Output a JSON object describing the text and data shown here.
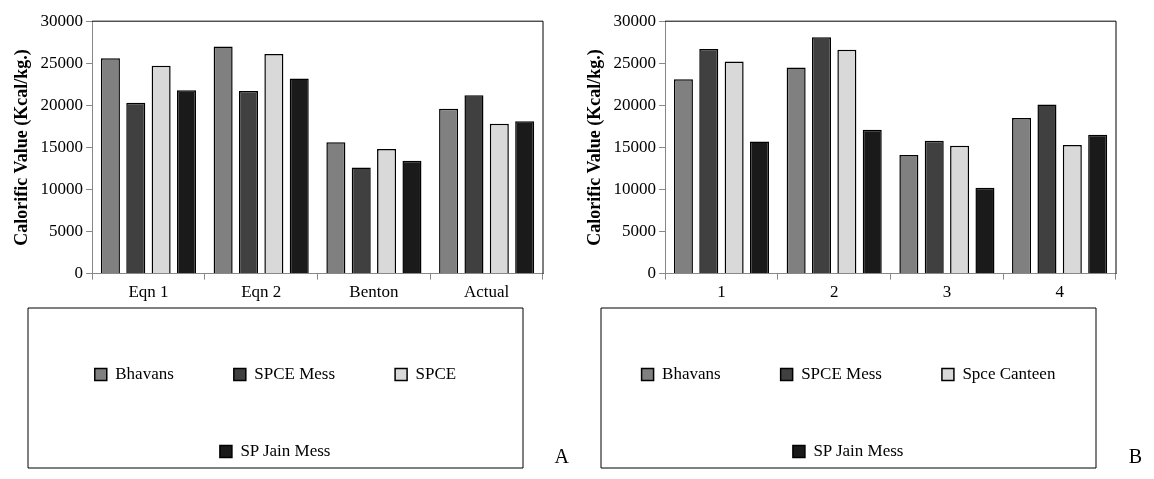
{
  "chart_data": [
    {
      "type": "bar",
      "ylabel": "Calorific Value (Kcal/kg.)",
      "categories": [
        "Eqn 1",
        "Eqn 2",
        "Benton",
        "Actual"
      ],
      "ylim": [
        0,
        30000
      ],
      "yticks": [
        0,
        5000,
        10000,
        15000,
        20000,
        25000,
        30000
      ],
      "grid": false,
      "legend": "bottom",
      "annotations": [
        "A"
      ],
      "series": [
        {
          "name": "Bhavans",
          "color": "#808080",
          "values": [
            25600,
            27000,
            15600,
            19600
          ]
        },
        {
          "name": "SPCE Mess",
          "color": "#404040",
          "values": [
            20300,
            21700,
            12600,
            21200
          ]
        },
        {
          "name": "SPCE",
          "color": "#d9d9d9",
          "values": [
            24700,
            26100,
            14800,
            17800
          ]
        },
        {
          "name": "SP Jain Mess",
          "color": "#1a1a1a",
          "values": [
            21800,
            23200,
            13400,
            18100
          ]
        }
      ]
    },
    {
      "type": "bar",
      "ylabel": "Calorific Value (Kcal/kg.)",
      "categories": [
        "1",
        "2",
        "3",
        "4"
      ],
      "ylim": [
        0,
        30000
      ],
      "yticks": [
        0,
        5000,
        10000,
        15000,
        20000,
        25000,
        30000
      ],
      "grid": false,
      "legend": "bottom",
      "annotations": [
        "B"
      ],
      "series": [
        {
          "name": "Bhavans",
          "color": "#808080",
          "values": [
            23100,
            24500,
            14100,
            18500
          ]
        },
        {
          "name": "SPCE Mess",
          "color": "#404040",
          "values": [
            26700,
            28100,
            15800,
            20100
          ]
        },
        {
          "name": "Spce Canteen",
          "color": "#d9d9d9",
          "values": [
            25200,
            26600,
            15200,
            15300
          ]
        },
        {
          "name": "SP Jain Mess",
          "color": "#1a1a1a",
          "values": [
            15700,
            17100,
            10200,
            16500
          ]
        }
      ]
    }
  ]
}
